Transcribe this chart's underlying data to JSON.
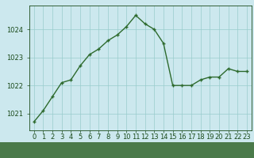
{
  "x": [
    0,
    1,
    2,
    3,
    4,
    5,
    6,
    7,
    8,
    9,
    10,
    11,
    12,
    13,
    14,
    15,
    16,
    17,
    18,
    19,
    20,
    21,
    22,
    23
  ],
  "y": [
    1020.7,
    1021.1,
    1021.6,
    1022.1,
    1022.2,
    1022.7,
    1023.1,
    1023.3,
    1023.6,
    1023.8,
    1024.1,
    1024.5,
    1024.2,
    1024.0,
    1023.5,
    1022.0,
    1022.0,
    1022.0,
    1022.2,
    1022.3,
    1022.3,
    1022.6,
    1022.5,
    1022.5
  ],
  "line_color": "#2d6a2d",
  "marker": "+",
  "marker_size": 3.5,
  "marker_linewidth": 1.0,
  "bg_color": "#cce8ee",
  "grid_color": "#99cccc",
  "xlabel_color": "#1a4a1a",
  "tick_color": "#1a4a1a",
  "ylim": [
    1020.4,
    1024.85
  ],
  "yticks": [
    1021,
    1022,
    1023,
    1024
  ],
  "xlim": [
    -0.5,
    23.5
  ],
  "label_fontsize": 6.5,
  "tick_fontsize": 6.0,
  "linewidth": 1.0,
  "bottom_label_bg": "#4a7a4a"
}
